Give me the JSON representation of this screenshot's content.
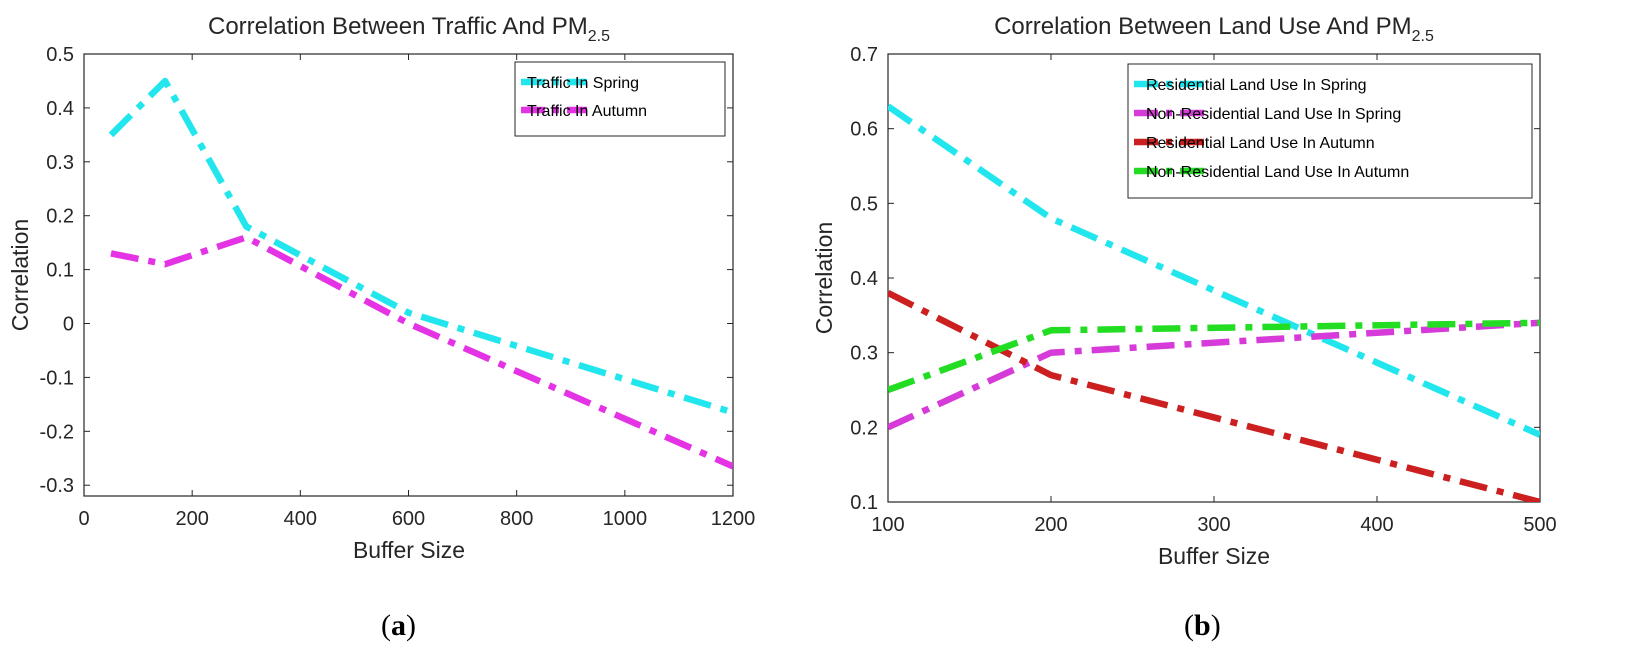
{
  "chart_data": [
    {
      "type": "line",
      "title": "Correlation Between Traffic And PM",
      "title_subscript": "2.5",
      "xlabel": "Buffer Size",
      "ylabel": "Correlation",
      "xlim": [
        0,
        1200
      ],
      "ylim": [
        -0.32,
        0.5
      ],
      "xticks": [
        0,
        200,
        400,
        600,
        800,
        1000,
        1200
      ],
      "yticks": [
        -0.3,
        -0.2,
        -0.1,
        0,
        0.1,
        0.2,
        0.3,
        0.4,
        0.5
      ],
      "legend_position": "top-right",
      "caption": "a",
      "series": [
        {
          "name": "Traffic In Spring",
          "color": "#22e6ee",
          "x": [
            50,
            150,
            300,
            600,
            1200
          ],
          "y": [
            0.35,
            0.45,
            0.18,
            0.02,
            -0.165
          ]
        },
        {
          "name": "Traffic In Autumn",
          "color": "#e433e4",
          "x": [
            50,
            150,
            300,
            600,
            1200
          ],
          "y": [
            0.13,
            0.11,
            0.16,
            0.0,
            -0.265
          ]
        }
      ]
    },
    {
      "type": "line",
      "title": "Correlation Between Land Use And PM",
      "title_subscript": "2.5",
      "xlabel": "Buffer Size",
      "ylabel": "Correlation",
      "xlim": [
        100,
        500
      ],
      "ylim": [
        0.1,
        0.7
      ],
      "xticks": [
        100,
        200,
        300,
        400,
        500
      ],
      "yticks": [
        0.1,
        0.2,
        0.3,
        0.4,
        0.5,
        0.6,
        0.7
      ],
      "legend_position": "top-right",
      "caption": "b",
      "series": [
        {
          "name": "Residential Land Use In Spring",
          "color": "#22e6ee",
          "x": [
            100,
            200,
            500
          ],
          "y": [
            0.63,
            0.48,
            0.19
          ]
        },
        {
          "name": "Non-Residential Land Use In Spring",
          "color": "#d63bd9",
          "x": [
            100,
            200,
            500
          ],
          "y": [
            0.2,
            0.3,
            0.34
          ]
        },
        {
          "name": "Residential Land Use In Autumn",
          "color": "#cc1f1f",
          "x": [
            100,
            200,
            500
          ],
          "y": [
            0.38,
            0.27,
            0.1
          ]
        },
        {
          "name": "Non-Residential Land Use In Autumn",
          "color": "#22dd22",
          "x": [
            100,
            200,
            500
          ],
          "y": [
            0.25,
            0.33,
            0.34
          ]
        }
      ]
    }
  ]
}
